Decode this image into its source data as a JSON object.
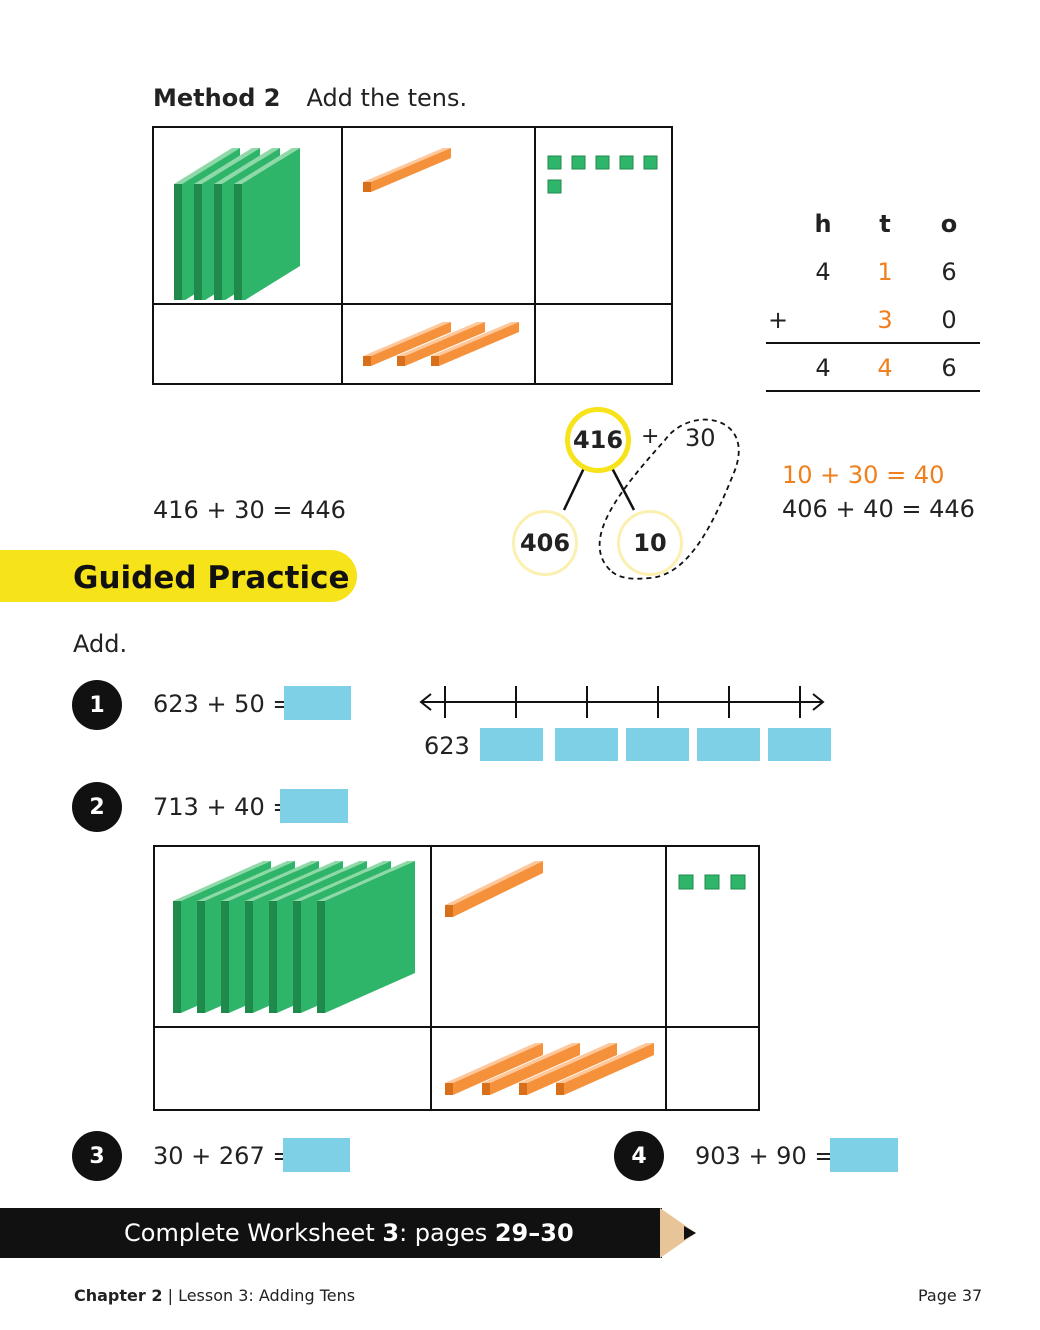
{
  "method": {
    "label": "Method 2",
    "instruction": "Add the tens."
  },
  "place_value_table": {
    "headers": [
      "h",
      "t",
      "o"
    ],
    "row1": [
      "4",
      "1",
      "6"
    ],
    "row2_sign": "+",
    "row2": [
      "",
      "3",
      "0"
    ],
    "result": [
      "4",
      "4",
      "6"
    ]
  },
  "equation_main": "416 + 30 = 446",
  "bond": {
    "top": "416",
    "plus": "+",
    "addend": "30",
    "left": "406",
    "right": "10"
  },
  "working": {
    "line1": "10 + 30 = 40",
    "line2": "406 + 40 = 446"
  },
  "guided_practice": {
    "title": "Guided Practice",
    "instruction": "Add."
  },
  "problems": [
    {
      "number": "1",
      "text": "623 + 50 ="
    },
    {
      "number": "2",
      "text": "713 + 40 ="
    },
    {
      "number": "3",
      "text": "30 + 267 ="
    },
    {
      "number": "4",
      "text": "903 + 90 ="
    }
  ],
  "number_line": {
    "start": "623"
  },
  "footer": {
    "pre": "Complete Worksheet ",
    "worksheet": "3",
    "mid": ": pages ",
    "pages": "29–30"
  },
  "page_footer": {
    "chapter": "Chapter 2",
    "separator": "|",
    "lesson": "Lesson 3: Adding Tens",
    "page": "Page 37"
  },
  "colors": {
    "hundreds_green": "#2fb56a",
    "tens_orange": "#f5913a",
    "answer_box": "#7dd0e5",
    "banner_yellow": "#f7e31a",
    "orange_text": "#f07f1d"
  }
}
